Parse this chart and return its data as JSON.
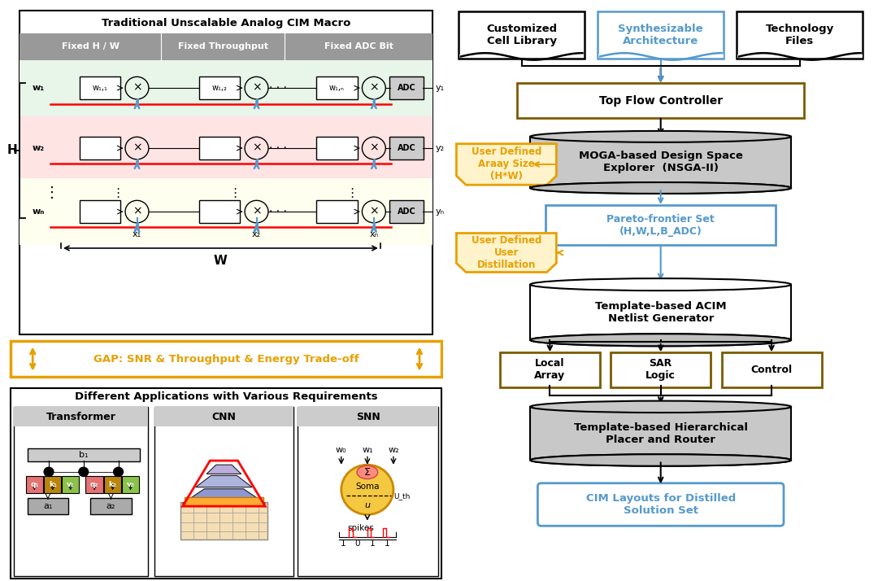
{
  "bg_color": "#ffffff",
  "title_left": "Traditional Unscalable Analog CIM Macro",
  "gap_text": "GAP: SNR & Throughput & Energy Trade-off",
  "bottom_title": "Different Applications with Various Requirements",
  "app_titles": [
    "Transformer",
    "CNN",
    "SNN"
  ],
  "sub_boxes": [
    "Local\nArray",
    "SAR\nLogic",
    "Control"
  ],
  "user_defined_1_line1": "User Defined",
  "user_defined_1_line2": "Araay Size\n(H*W)",
  "user_defined_2_line1": "User Defined",
  "user_defined_2_line2": "User\nDistillation",
  "orange_color": "#E8A000",
  "blue_color": "#4472C4",
  "light_blue": "#5599CC",
  "brown_color": "#7B5B00",
  "green_bg": "#E8F5E9",
  "pink_bg": "#FFE4E4",
  "yellow_bg": "#FFFFF0",
  "header_gray": "#999999",
  "cyl_gray": "#C8C8C8"
}
